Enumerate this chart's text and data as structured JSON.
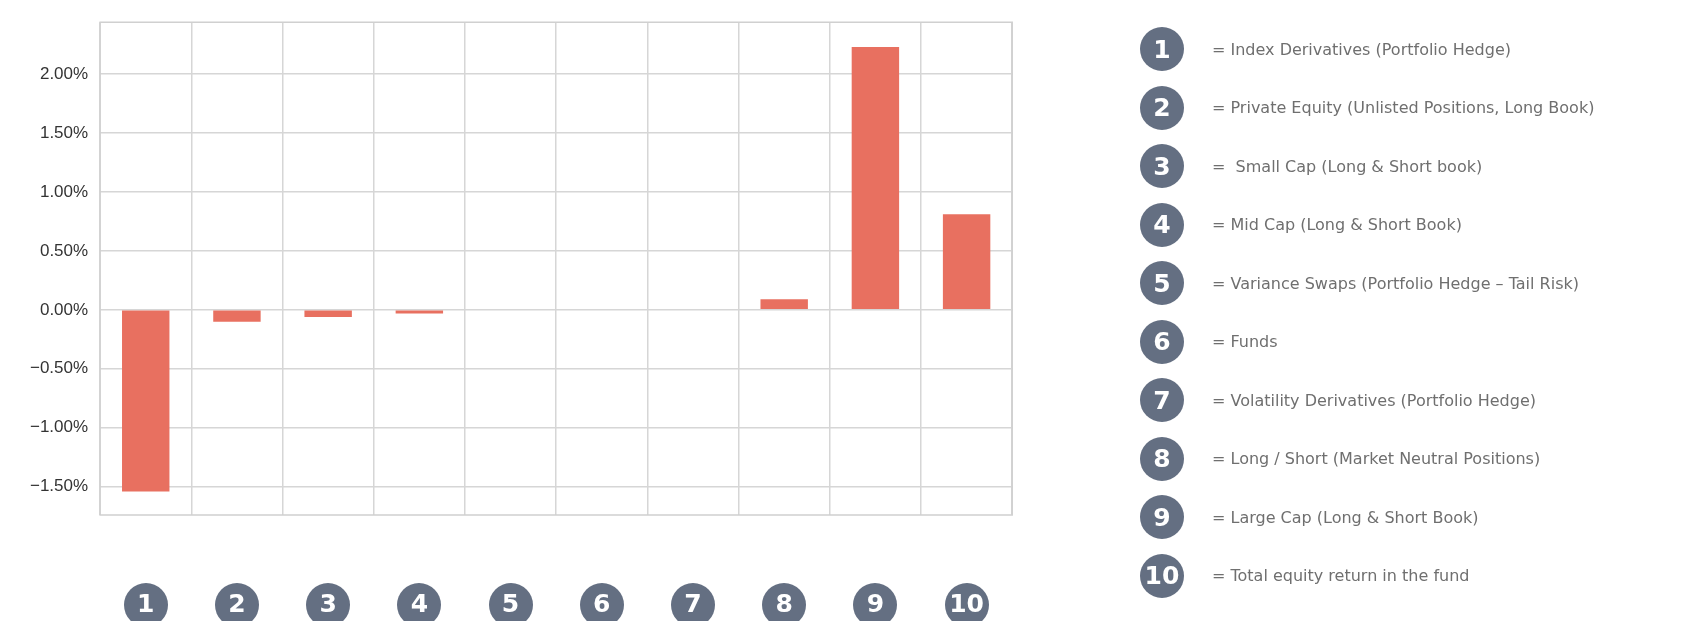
{
  "chart_data": {
    "type": "bar",
    "categories": [
      "1",
      "2",
      "3",
      "4",
      "5",
      "6",
      "7",
      "8",
      "9",
      "10"
    ],
    "values": [
      -1.54,
      -0.1,
      -0.06,
      -0.03,
      0,
      0,
      0,
      0.09,
      2.23,
      0.81
    ],
    "color": "#e87060",
    "ylim": [
      -1.74,
      2.44
    ],
    "yticks": [
      {
        "value": -1.5,
        "label": "−1.50%"
      },
      {
        "value": -1,
        "label": "−1.00%"
      },
      {
        "value": -0.5,
        "label": "−0.50%"
      },
      {
        "value": 0,
        "label": "0.00%"
      },
      {
        "value": 0.5,
        "label": "0.50%"
      },
      {
        "value": 1,
        "label": "1.00%"
      },
      {
        "value": 1.5,
        "label": "1.50%"
      },
      {
        "value": 2,
        "label": "2.00%"
      }
    ],
    "grid": true,
    "annotations": [
      "= Index Derivatives (Portfolio Hedge)",
      "= Private Equity (Unlisted Positions, Long Book)",
      "=  Small Cap (Long & Short book)",
      "= Mid Cap (Long & Short Book)",
      "= Variance Swaps (Portfolio Hedge – Tail Risk)",
      "= Funds",
      "= Volatility Derivatives (Portfolio Hedge)",
      "= Long / Short (Market Neutral Positions)",
      "= Large Cap (Long & Short Book)",
      "= Total equity return in the fund"
    ]
  }
}
